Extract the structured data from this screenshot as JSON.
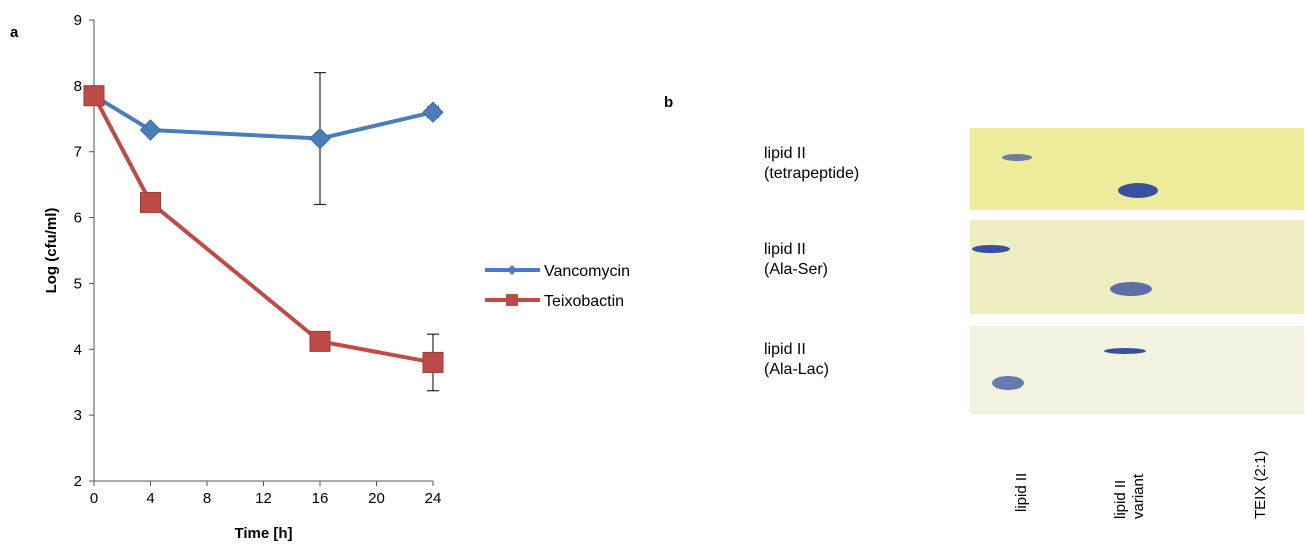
{
  "panel_a": {
    "letter": "a",
    "chart_data": {
      "type": "line",
      "xlabel": "Time [h]",
      "ylabel": "Log (cfu/ml)",
      "xlim": [
        0,
        24
      ],
      "ylim": [
        2,
        9
      ],
      "xticks": [
        0,
        4,
        8,
        12,
        16,
        20,
        24
      ],
      "yticks": [
        2,
        3,
        4,
        5,
        6,
        7,
        8,
        9
      ],
      "grid": false,
      "legend_position": "right",
      "series": [
        {
          "name": "Vancomycin",
          "color": "#4a7ebb",
          "marker": "diamond",
          "x": [
            0,
            4,
            16,
            24
          ],
          "y": [
            7.85,
            7.33,
            7.2,
            7.6
          ],
          "error": [
            0,
            0.05,
            1.0,
            0.08
          ]
        },
        {
          "name": "Teixobactin",
          "color": "#be4b48",
          "marker": "square",
          "x": [
            0,
            4,
            16,
            24
          ],
          "y": [
            7.85,
            6.23,
            4.12,
            3.8
          ],
          "error": [
            0,
            0,
            0,
            0.43
          ]
        }
      ]
    }
  },
  "panel_b": {
    "letter": "b",
    "rows": [
      {
        "line1": "lipid II",
        "line2": "(tetrapeptide)",
        "gel_color": "#ecec9a"
      },
      {
        "line1": "lipid II",
        "line2": "(Ala-Ser)",
        "gel_color": "#efeec0"
      },
      {
        "line1": "lipid II",
        "line2": "(Ala-Lac)",
        "gel_color": "#f1f2e0"
      }
    ],
    "columns": [
      {
        "line1": "lipid II",
        "line2": ""
      },
      {
        "line1": "lipid II",
        "line2": "variant"
      },
      {
        "line1": "TEIX (2:1)",
        "line2": ""
      }
    ],
    "band_color": "#3a4fa0"
  }
}
